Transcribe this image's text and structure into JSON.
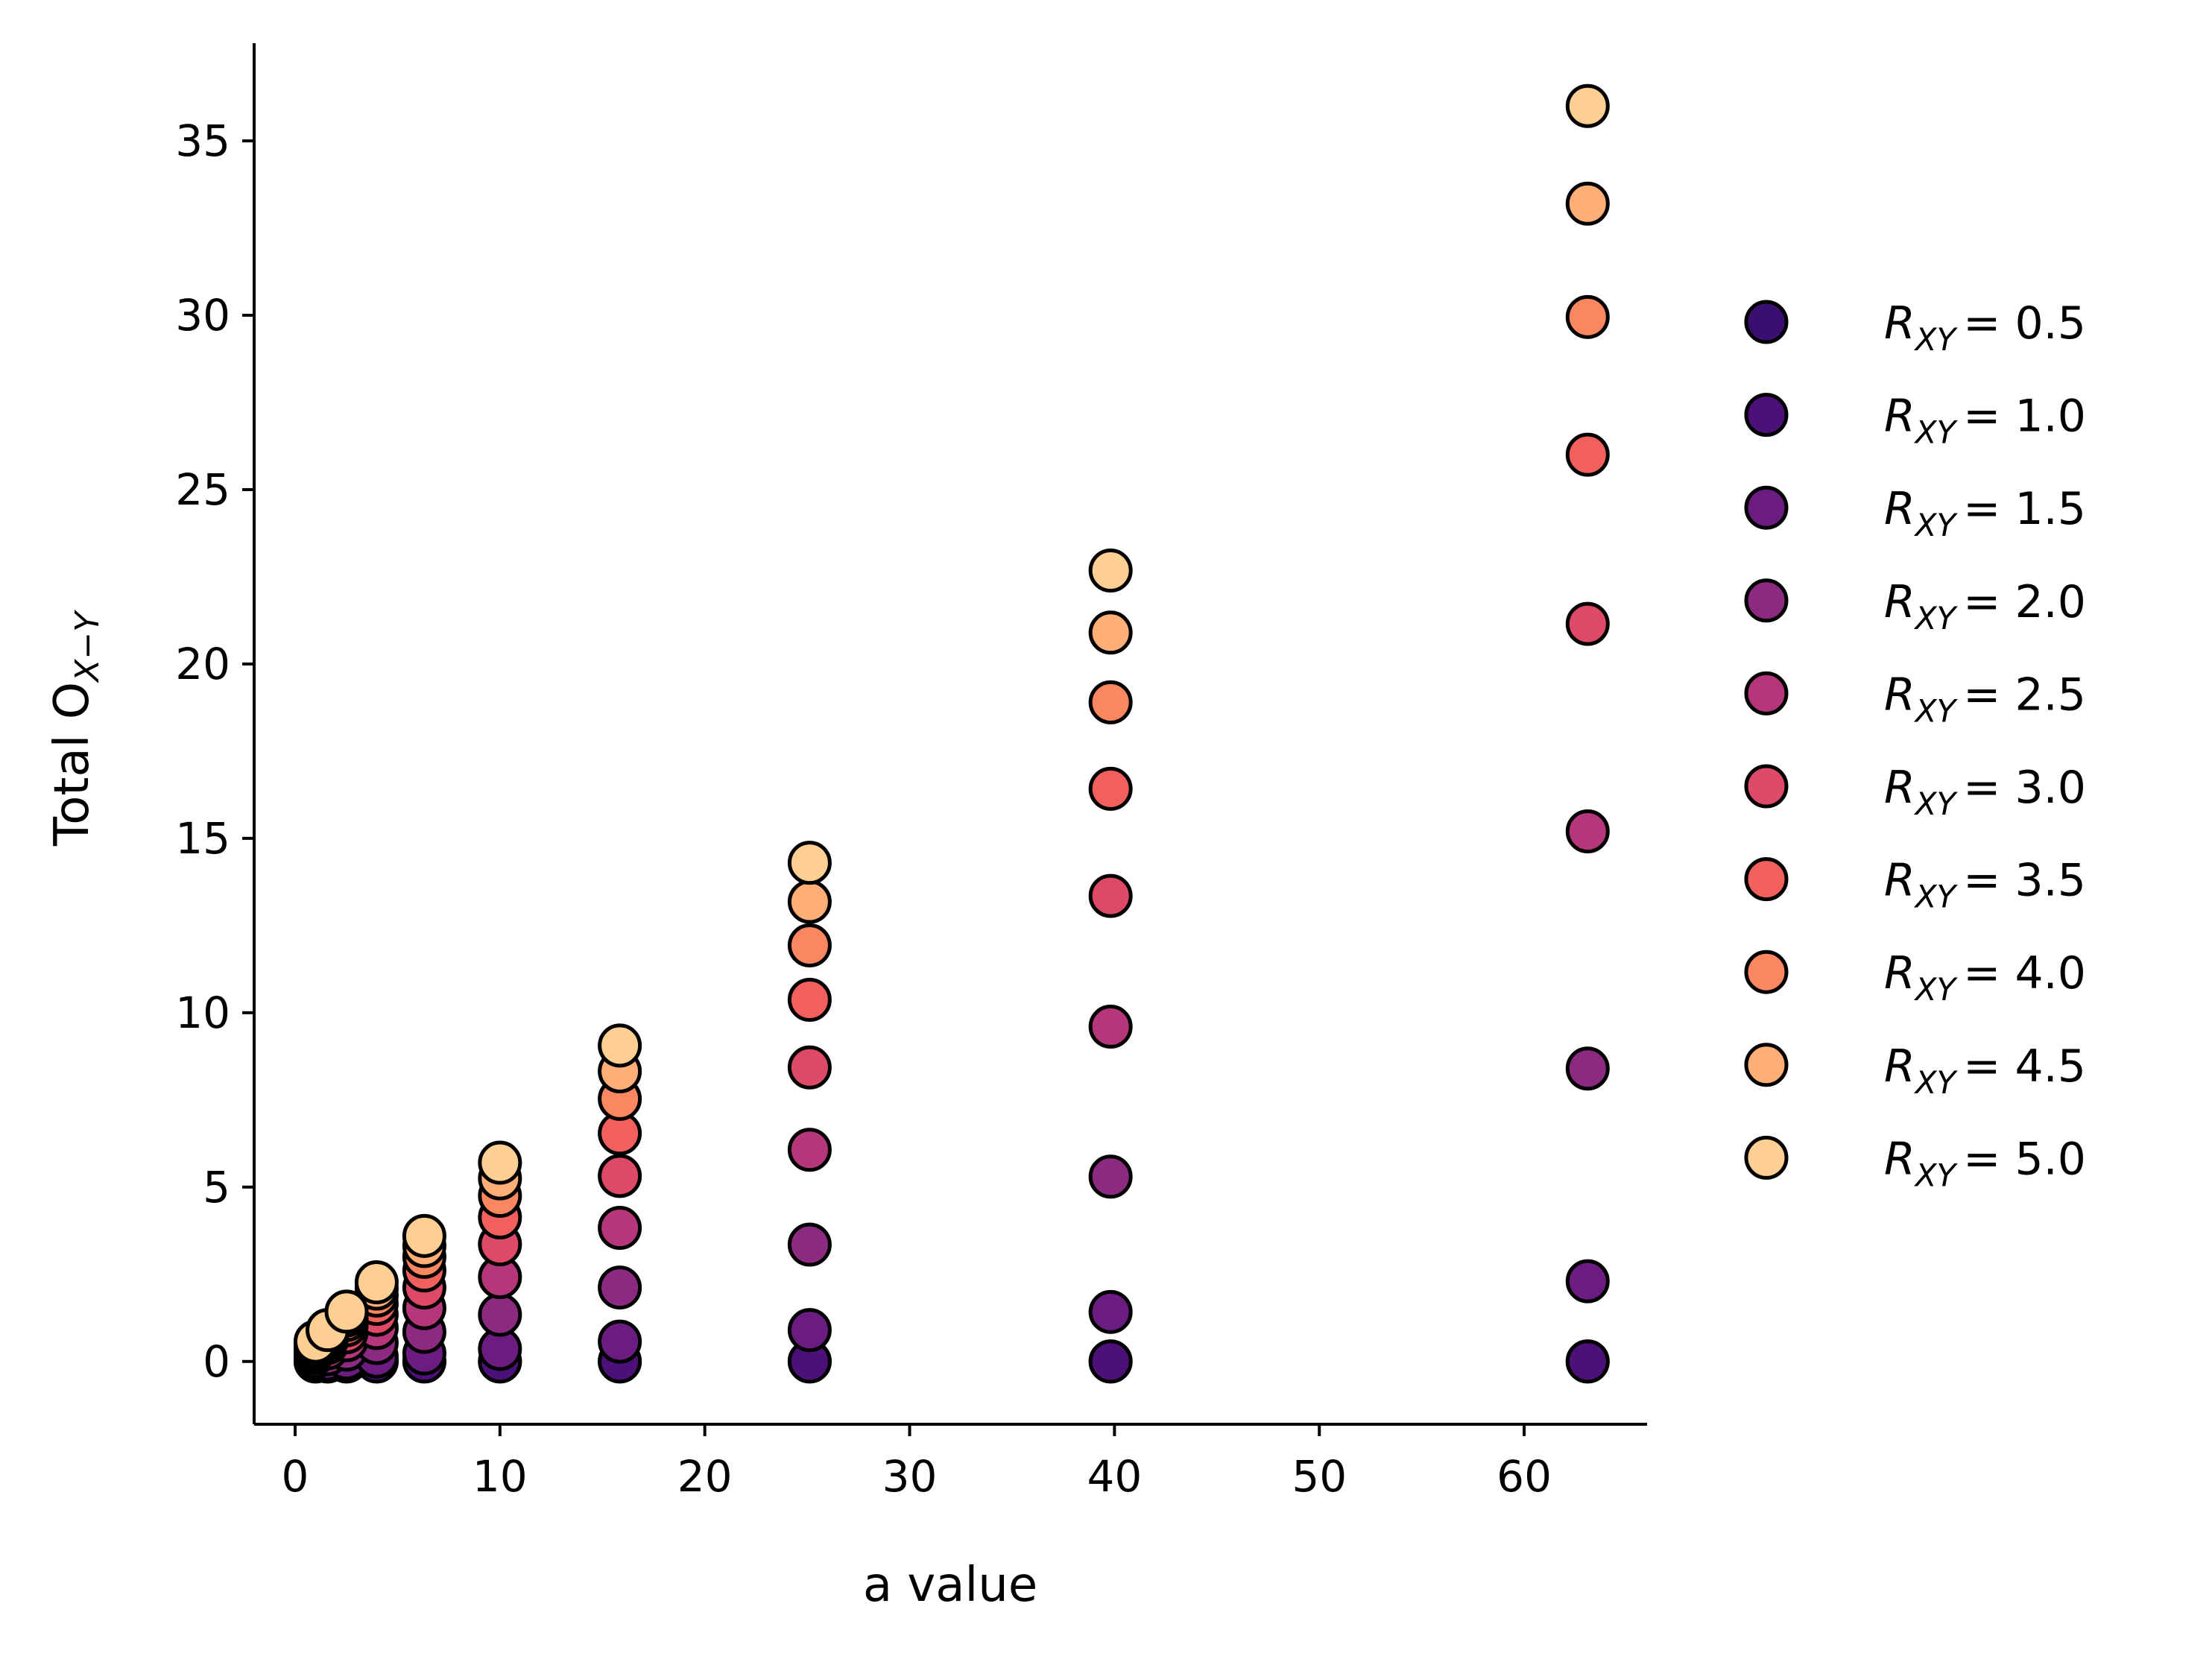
{
  "chart_data": {
    "type": "scatter",
    "title": "",
    "xlabel": "a value",
    "ylabel": "Total O",
    "ylabel_subscript": "X−Y",
    "xlim": [
      -2,
      66
    ],
    "ylim": [
      -1.8,
      37.8
    ],
    "xticks": [
      0,
      10,
      20,
      30,
      40,
      50,
      60
    ],
    "yticks": [
      0,
      5,
      10,
      15,
      20,
      25,
      30,
      35
    ],
    "x": [
      1.0,
      1.585,
      2.512,
      3.981,
      6.31,
      10.0,
      15.85,
      25.12,
      39.81,
      63.1
    ],
    "legend_location": "outside right",
    "series": [
      {
        "name": "R_XY = 0.5",
        "label_main": "R",
        "label_sub": "XY",
        "label_value": "= 0.5",
        "color": "#3b0f70",
        "values": [
          0,
          0,
          0,
          0,
          0,
          0,
          0,
          0,
          0,
          0
        ]
      },
      {
        "name": "R_XY = 1.0",
        "label_main": "R",
        "label_sub": "XY",
        "label_value": "= 1.0",
        "color": "#4d1079",
        "values": [
          0,
          0,
          0,
          0,
          0,
          0,
          0,
          0,
          0,
          0
        ]
      },
      {
        "name": "R_XY = 1.5",
        "label_main": "R",
        "label_sub": "XY",
        "label_value": "= 1.5",
        "color": "#6a1c81",
        "values": [
          0.04,
          0.06,
          0.09,
          0.14,
          0.23,
          0.36,
          0.57,
          0.9,
          1.42,
          2.3
        ]
      },
      {
        "name": "R_XY = 2.0",
        "label_main": "R",
        "label_sub": "XY",
        "label_value": "= 2.0",
        "color": "#8c2981",
        "values": [
          0.13,
          0.21,
          0.34,
          0.53,
          0.85,
          1.34,
          2.12,
          3.35,
          5.3,
          8.4
        ]
      },
      {
        "name": "R_XY = 2.5",
        "label_main": "R",
        "label_sub": "XY",
        "label_value": "= 2.5",
        "color": "#b5367a",
        "values": [
          0.24,
          0.38,
          0.61,
          0.96,
          1.53,
          2.42,
          3.83,
          6.07,
          9.6,
          15.2
        ]
      },
      {
        "name": "R_XY = 3.0",
        "label_main": "R",
        "label_sub": "XY",
        "label_value": "= 3.0",
        "color": "#de4968",
        "values": [
          0.34,
          0.53,
          0.84,
          1.34,
          2.12,
          3.36,
          5.32,
          8.43,
          13.35,
          21.15
        ]
      },
      {
        "name": "R_XY = 3.5",
        "label_main": "R",
        "label_sub": "XY",
        "label_value": "= 3.5",
        "color": "#f1605d",
        "values": [
          0.41,
          0.65,
          1.04,
          1.65,
          2.61,
          4.13,
          6.54,
          10.37,
          16.42,
          26.0
        ]
      },
      {
        "name": "R_XY = 4.0",
        "label_main": "R",
        "label_sub": "XY",
        "label_value": "= 4.0",
        "color": "#fb8761",
        "values": [
          0.48,
          0.75,
          1.19,
          1.89,
          3.0,
          4.75,
          7.53,
          11.93,
          18.9,
          29.95
        ]
      },
      {
        "name": "R_XY = 4.5",
        "label_main": "R",
        "label_sub": "XY",
        "label_value": "= 4.5",
        "color": "#feaf77",
        "values": [
          0.53,
          0.83,
          1.32,
          2.09,
          3.31,
          5.25,
          8.32,
          13.18,
          20.9,
          33.2
        ]
      },
      {
        "name": "R_XY = 5.0",
        "label_main": "R",
        "label_sub": "XY",
        "label_value": "= 5.0",
        "color": "#fecf92",
        "values": [
          0.57,
          0.9,
          1.43,
          2.27,
          3.6,
          5.7,
          9.06,
          14.3,
          22.68,
          36.0
        ]
      }
    ]
  }
}
